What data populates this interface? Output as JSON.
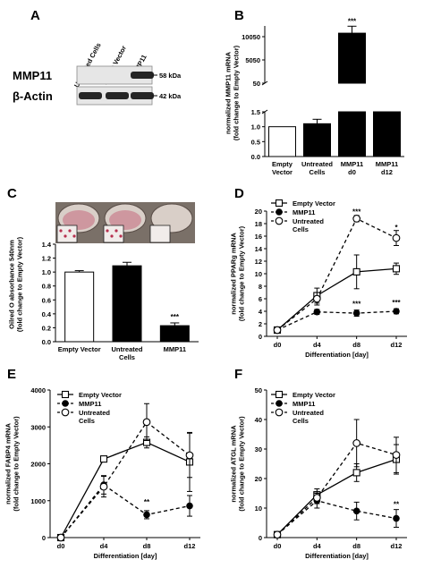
{
  "panels": {
    "a": {
      "letter": "A",
      "lanes": [
        "Untreated Cells",
        "Empty Vector",
        "MMP11"
      ],
      "rows": [
        {
          "protein": "MMP11",
          "kda": "58 kDa"
        },
        {
          "protein": "β-Actin",
          "kda": "42 kDa"
        }
      ],
      "band_intensity": {
        "MMP11": [
          0,
          0,
          1
        ],
        "β-Actin": [
          1,
          1,
          1
        ]
      }
    },
    "b": {
      "letter": "B"
    },
    "c": {
      "letter": "C"
    },
    "d": {
      "letter": "D"
    },
    "e": {
      "letter": "E"
    },
    "f": {
      "letter": "F"
    }
  },
  "chart_data": [
    {
      "id": "B",
      "type": "bar",
      "ylabel": "normalized MMP11 mRNA\n(fold change to Empty Vector)",
      "categories": [
        "Empty Vector",
        "Untreated Cells",
        "MMP11 d0",
        "MMP11 d12"
      ],
      "values": [
        1.0,
        1.1,
        10800,
        50
      ],
      "errors": [
        0,
        0.15,
        1500,
        3
      ],
      "fills": [
        "#ffffff",
        "#000000",
        "#000000",
        "#000000"
      ],
      "broken_axis": true,
      "ticks_lower": [
        "0.0",
        "0.5",
        "1.0",
        "1.5"
      ],
      "ticks_upper": [
        "50",
        "5050",
        "10050"
      ],
      "annotations": [
        {
          "category": "MMP11 d0",
          "text": "***"
        }
      ]
    },
    {
      "id": "C",
      "type": "bar",
      "ylabel": "Oilred O absorbance 540nm\n(fold change to Empty Vector)",
      "categories": [
        "Empty Vector",
        "Untreated Cells",
        "MMP11"
      ],
      "values": [
        1.0,
        1.09,
        0.23
      ],
      "errors": [
        0.02,
        0.05,
        0.04
      ],
      "fills": [
        "#ffffff",
        "#000000",
        "#000000"
      ],
      "ylim": [
        0,
        1.4
      ],
      "yticks": [
        "0.0",
        "0.2",
        "0.4",
        "0.6",
        "0.8",
        "1.0",
        "1.2",
        "1.4"
      ],
      "annotations": [
        {
          "category": "MMP11",
          "text": "***"
        }
      ]
    },
    {
      "id": "D",
      "type": "line",
      "ylabel": "normalized PPARg mRNA\n(fold change to Empty Vector)",
      "xlabel": "Differentiation [day]",
      "x": [
        "d0",
        "d4",
        "d8",
        "d12"
      ],
      "ylim": [
        0,
        20
      ],
      "yticks": [
        "0",
        "2",
        "4",
        "6",
        "8",
        "10",
        "12",
        "14",
        "16",
        "18",
        "20"
      ],
      "series": [
        {
          "name": "Empty Vector",
          "marker": "square-open",
          "dash": false,
          "values": [
            1.0,
            6.5,
            10.3,
            10.8
          ],
          "errors": [
            0.3,
            1.2,
            2.7,
            0.9
          ]
        },
        {
          "name": "MMP11",
          "marker": "circle-filled",
          "dash": true,
          "values": [
            1.0,
            3.9,
            3.7,
            4.0
          ],
          "errors": [
            0.2,
            0.4,
            0.5,
            0.4
          ]
        },
        {
          "name": "Untreated Cells",
          "marker": "circle-open",
          "dash": true,
          "values": [
            1.0,
            6.0,
            18.8,
            15.7
          ],
          "errors": [
            0.2,
            1.0,
            0.5,
            1.2
          ]
        }
      ],
      "annotations": [
        {
          "x": "d8",
          "y": 19.5,
          "text": "***"
        },
        {
          "x": "d12",
          "y": 17.0,
          "text": "*"
        },
        {
          "x": "d8",
          "y": 4.8,
          "text": "***"
        },
        {
          "x": "d12",
          "y": 5.0,
          "text": "***"
        }
      ]
    },
    {
      "id": "E",
      "type": "line",
      "ylabel": "normalized FABP4 mRNA\n(fold change to Empty Vector)",
      "xlabel": "Differentiation [day]",
      "x": [
        "d0",
        "d4",
        "d8",
        "d12"
      ],
      "ylim": [
        0,
        4000
      ],
      "yticks": [
        "0",
        "1000",
        "2000",
        "3000",
        "4000"
      ],
      "series": [
        {
          "name": "Empty Vector",
          "marker": "square-open",
          "dash": false,
          "values": [
            0,
            2130,
            2580,
            2050
          ],
          "errors": [
            10,
            60,
            150,
            800
          ]
        },
        {
          "name": "MMP11",
          "marker": "circle-filled",
          "dash": true,
          "values": [
            0,
            1430,
            620,
            860
          ],
          "errors": [
            10,
            250,
            110,
            280
          ]
        },
        {
          "name": "Untreated Cells",
          "marker": "circle-open",
          "dash": true,
          "values": [
            0,
            1380,
            3130,
            2230
          ],
          "errors": [
            10,
            280,
            500,
            600
          ]
        }
      ],
      "annotations": [
        {
          "x": "d8",
          "y": 900,
          "text": "**"
        }
      ]
    },
    {
      "id": "F",
      "type": "line",
      "ylabel": "normalized ATGL mRNA\n(fold change to Empty Vector)",
      "xlabel": "Differentiation [day]",
      "x": [
        "d0",
        "d4",
        "d8",
        "d12"
      ],
      "ylim": [
        0,
        50
      ],
      "yticks": [
        "0",
        "10",
        "20",
        "30",
        "40",
        "50"
      ],
      "series": [
        {
          "name": "Empty Vector",
          "marker": "square-open",
          "dash": false,
          "values": [
            1,
            14.5,
            22,
            26.5
          ],
          "errors": [
            0.5,
            2,
            3,
            5
          ]
        },
        {
          "name": "MMP11",
          "marker": "circle-filled",
          "dash": true,
          "values": [
            1,
            12.5,
            9,
            6.5
          ],
          "errors": [
            0.5,
            2.5,
            3,
            3
          ]
        },
        {
          "name": "Untreated Cells",
          "marker": "circle-open",
          "dash": true,
          "values": [
            1,
            13.5,
            32,
            28
          ],
          "errors": [
            0.5,
            2,
            8,
            6
          ]
        }
      ],
      "annotations": [
        {
          "x": "d12",
          "y": 10.5,
          "text": "**"
        }
      ]
    }
  ]
}
